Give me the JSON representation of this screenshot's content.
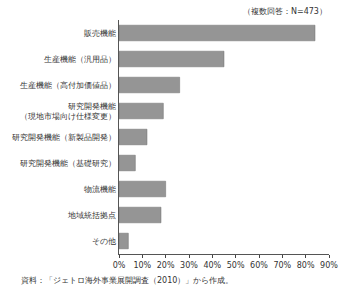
{
  "chart_data": {
    "type": "bar",
    "orientation": "horizontal",
    "subtitle": "（複数回答：N=473）",
    "source": "資料：「ジェトロ海外事業展開調査（2010）」から作成。",
    "categories": [
      "販売機能",
      "生産機能（汎用品）",
      "生産機能（高付加価値品）",
      "研究開発機能\n（現地市場向け仕様変更）",
      "研究開発機能（新製品開発）",
      "研究開発機能（基礎研究）",
      "物流機能",
      "地域統括拠点",
      "その他"
    ],
    "values": [
      84,
      45,
      26,
      19,
      12,
      7,
      20,
      18,
      4
    ],
    "color": "#959595",
    "xlim": [
      0,
      90
    ],
    "xticks": [
      {
        "value": 0,
        "label": "0%"
      },
      {
        "value": 10,
        "label": "10%"
      },
      {
        "value": 20,
        "label": "20%"
      },
      {
        "value": 30,
        "label": "30%"
      },
      {
        "value": 40,
        "label": "40%"
      },
      {
        "value": 50,
        "label": "50%"
      },
      {
        "value": 60,
        "label": "60%"
      },
      {
        "value": 70,
        "label": "70%"
      },
      {
        "value": 80,
        "label": "80%"
      },
      {
        "value": 90,
        "label": "90%"
      }
    ],
    "grid": false
  }
}
